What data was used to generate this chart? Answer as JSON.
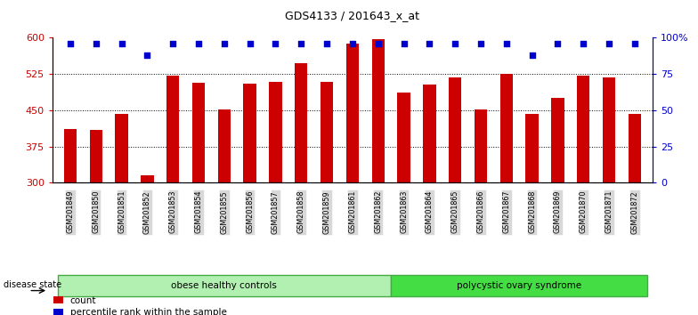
{
  "title": "GDS4133 / 201643_x_at",
  "samples": [
    "GSM201849",
    "GSM201850",
    "GSM201851",
    "GSM201852",
    "GSM201853",
    "GSM201854",
    "GSM201855",
    "GSM201856",
    "GSM201857",
    "GSM201858",
    "GSM201859",
    "GSM201861",
    "GSM201862",
    "GSM201863",
    "GSM201864",
    "GSM201865",
    "GSM201866",
    "GSM201867",
    "GSM201868",
    "GSM201869",
    "GSM201870",
    "GSM201871",
    "GSM201872"
  ],
  "counts": [
    412,
    410,
    442,
    315,
    522,
    507,
    452,
    505,
    508,
    548,
    508,
    588,
    598,
    487,
    503,
    518,
    452,
    525,
    442,
    475,
    522,
    518,
    443
  ],
  "percentiles": [
    96,
    96,
    96,
    88,
    96,
    96,
    96,
    96,
    96,
    96,
    96,
    96,
    96,
    96,
    96,
    96,
    96,
    96,
    88,
    96,
    96,
    96,
    96
  ],
  "group1_label": "obese healthy controls",
  "group2_label": "polycystic ovary syndrome",
  "group1_count": 13,
  "bar_color": "#cc0000",
  "dot_color": "#0000cc",
  "ylim_left": [
    300,
    600
  ],
  "ylim_right": [
    0,
    100
  ],
  "yticks_left": [
    300,
    375,
    450,
    525,
    600
  ],
  "yticks_right": [
    0,
    25,
    50,
    75,
    100
  ],
  "ytick_labels_right": [
    "0",
    "25",
    "50",
    "75",
    "100%"
  ],
  "grid_lines": [
    375,
    450,
    525
  ],
  "legend_items": [
    "count",
    "percentile rank within the sample"
  ],
  "disease_state_label": "disease state",
  "group1_color": "#b2f0b2",
  "group2_color": "#44dd44",
  "bar_width": 0.5
}
